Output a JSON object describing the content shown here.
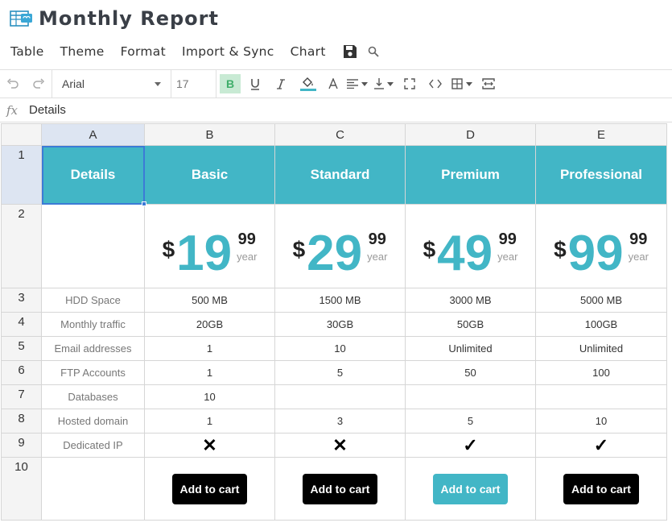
{
  "app": {
    "title": "Monthly Report"
  },
  "menu": {
    "items": [
      "Table",
      "Theme",
      "Format",
      "Import & Sync",
      "Chart"
    ]
  },
  "toolbar": {
    "font": "Arial",
    "size": "17",
    "bold_label": "B"
  },
  "formula": {
    "fx": "fx",
    "value": "Details"
  },
  "columns": [
    "A",
    "B",
    "C",
    "D",
    "E"
  ],
  "rows": [
    "1",
    "2",
    "3",
    "4",
    "5",
    "6",
    "7",
    "8",
    "9",
    "10"
  ],
  "header": [
    "Details",
    "Basic",
    "Standard",
    "Premium",
    "Professional"
  ],
  "prices": [
    {
      "currency": "$",
      "amount": "19",
      "cents": "99",
      "period": "year"
    },
    {
      "currency": "$",
      "amount": "29",
      "cents": "99",
      "period": "year"
    },
    {
      "currency": "$",
      "amount": "49",
      "cents": "99",
      "period": "year"
    },
    {
      "currency": "$",
      "amount": "99",
      "cents": "99",
      "period": "year"
    }
  ],
  "features": [
    {
      "label": "HDD Space",
      "values": [
        "500 MB",
        "1500 MB",
        "3000 MB",
        "5000 MB"
      ]
    },
    {
      "label": "Monthly traffic",
      "values": [
        "20GB",
        "30GB",
        "50GB",
        "100GB"
      ]
    },
    {
      "label": "Email addresses",
      "values": [
        "1",
        "10",
        "Unlimited",
        "Unlimited"
      ]
    },
    {
      "label": "FTP Accounts",
      "values": [
        "1",
        "5",
        "50",
        "100"
      ]
    },
    {
      "label": "Databases",
      "values": [
        "10",
        "",
        "",
        ""
      ]
    },
    {
      "label": "Hosted domain",
      "values": [
        "1",
        "3",
        "5",
        "10"
      ]
    }
  ],
  "dedicated_ip": {
    "label": "Dedicated IP",
    "values": [
      "✕",
      "✕",
      "✓",
      "✓"
    ]
  },
  "cart": {
    "label": "Add to cart"
  },
  "colors": {
    "accent": "#42b6c6",
    "selection": "#3c7bd6",
    "bold_active": "#c8ead4"
  }
}
